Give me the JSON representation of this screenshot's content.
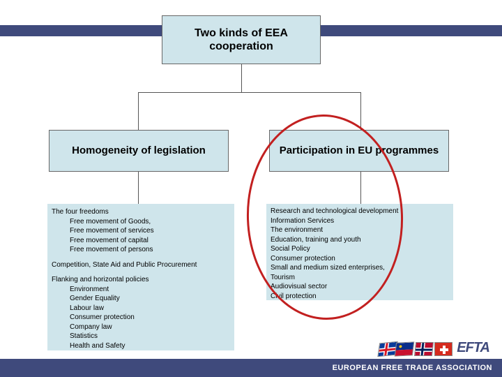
{
  "colors": {
    "band": "#3f4a7c",
    "box_fill": "#cfe5eb",
    "box_border": "#666666",
    "connector": "#555555",
    "highlight": "#c22020",
    "footer_text": "#ffffff",
    "efta_text": "#3f4a7c"
  },
  "hierarchy": {
    "root": {
      "title": "Two kinds of EEA cooperation"
    },
    "children": [
      {
        "title": "Homogeneity of legislation"
      },
      {
        "title": "Participation in EU programmes"
      }
    ]
  },
  "left_leaf": {
    "sections": [
      {
        "head": "The four freedoms",
        "subs": [
          "Free movement of Goods,",
          "Free movement of services",
          "Free movement of capital",
          "Free movement of persons"
        ]
      },
      {
        "head": "Competition, State Aid and Public Procurement",
        "subs": []
      },
      {
        "head": "Flanking and horizontal policies",
        "subs": [
          "Environment",
          "Gender Equality",
          "Labour law",
          "Consumer protection",
          "Company law",
          "Statistics",
          "Health and Safety"
        ]
      }
    ]
  },
  "right_leaf": {
    "items": [
      "Research and technological development",
      "Information Services",
      "The environment",
      "Education, training and youth",
      "Social Policy",
      "Consumer protection",
      "Small and medium sized enterprises,",
      "Tourism",
      "Audiovisual sector",
      "Civil protection"
    ]
  },
  "footer": {
    "org_name": "EUROPEAN FREE TRADE ASSOCIATION",
    "logo_text": "EFTA"
  },
  "flags": {
    "is": {
      "bg": "#0a3b9a",
      "cross1": "#ffffff",
      "cross2": "#d61a28"
    },
    "li": {
      "top": "#0a2e8a",
      "bottom": "#c8102e",
      "crown": "#f5c518"
    },
    "no": {
      "bg": "#ba0c2f",
      "cross1": "#ffffff",
      "cross2": "#00205b"
    },
    "ch": {
      "bg": "#d52b1e",
      "cross": "#ffffff"
    }
  }
}
